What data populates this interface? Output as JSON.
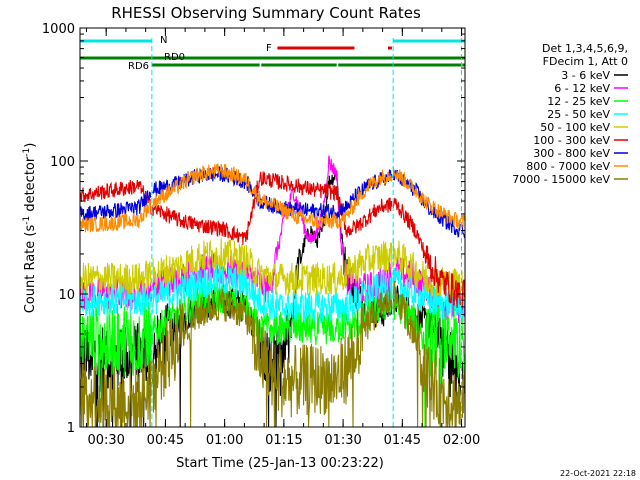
{
  "chart_data": {
    "type": "line",
    "title": "RHESSI Observing Summary Count Rates",
    "xlabel": "Start Time (25-Jan-13 00:23:22)",
    "ylabel_main": "Count Rate (s",
    "ylabel_sup1": "-1",
    "ylabel_mid": " detector",
    "ylabel_sup2": "-1",
    "ylabel_end": ")",
    "y_scale": "log",
    "ylim": [
      1,
      1000
    ],
    "xlim_minutes": [
      0,
      97.5
    ],
    "x_tick_labels": [
      "00:30",
      "00:45",
      "01:00",
      "01:15",
      "01:30",
      "01:45",
      "02:00"
    ],
    "x_tick_minutes": [
      6.63,
      21.63,
      36.63,
      51.63,
      66.63,
      81.63,
      96.63
    ],
    "y_tick_labels": [
      "1",
      "10",
      "100",
      "1000"
    ],
    "y_tick_values": [
      1,
      10,
      100,
      1000
    ],
    "grid": false,
    "legend_header": [
      "Det 1,3,4,5,6,9,",
      "FDecim 1, Att 0"
    ],
    "footer_date": "22-Oct-2021 22:18",
    "night_boundaries_minutes": [
      18.2,
      79.3,
      96.6
    ],
    "flags": [
      {
        "label": "N",
        "color": "#00e5e5",
        "segments": [
          [
            0,
            18.2
          ],
          [
            79.3,
            97.5
          ]
        ]
      },
      {
        "label": "F",
        "color": "#e00000",
        "segments": [
          [
            50.0,
            69.5
          ],
          [
            78.0,
            79.0
          ]
        ]
      },
      {
        "label": "RD0",
        "color": "#008000",
        "segments": [
          [
            0,
            97.5
          ]
        ]
      },
      {
        "label": "RD6",
        "color": "#008000",
        "segments": [
          [
            18.2,
            45.5
          ],
          [
            45.9,
            65.0
          ],
          [
            65.4,
            96.5
          ],
          [
            96.8,
            97.5
          ]
        ]
      }
    ],
    "series": [
      {
        "name": "3 - 6 keV",
        "color": "#000000",
        "x": [
          0,
          8,
          15,
          18,
          25,
          30,
          36,
          42,
          45.5,
          48,
          50,
          52,
          53.5,
          55,
          57,
          58.5,
          60,
          61.5,
          63,
          65,
          66,
          67.5,
          70,
          73,
          76,
          78,
          80,
          83,
          85,
          88,
          91,
          94,
          96.5
        ],
        "y": [
          3.5,
          3.3,
          3.3,
          3.2,
          6,
          8,
          9,
          8,
          5,
          2.8,
          3.0,
          3.5,
          6,
          15,
          25,
          30,
          25,
          30,
          70,
          80,
          30,
          15,
          10,
          8,
          7,
          8,
          9,
          8,
          7,
          6,
          5,
          3,
          2
        ]
      },
      {
        "name": "6 - 12 keV",
        "color": "#ff00ff",
        "x": [
          0,
          8,
          15,
          18,
          25,
          30,
          36,
          42,
          45.5,
          48,
          52,
          54,
          56,
          57,
          58.5,
          60,
          61.5,
          63,
          65,
          66,
          67.5,
          70,
          73,
          76,
          80,
          85,
          88,
          91,
          94,
          96.5
        ],
        "y": [
          10,
          10,
          10,
          11,
          13,
          15,
          15,
          14,
          12,
          11,
          40,
          60,
          40,
          30,
          25,
          30,
          40,
          100,
          80,
          25,
          13,
          11,
          11,
          12,
          15,
          13,
          11,
          9,
          8,
          8
        ]
      },
      {
        "name": "12 - 25 keV",
        "color": "#00ff00",
        "x": [
          0,
          8,
          15,
          18,
          25,
          30,
          36,
          42,
          45.5,
          50,
          55,
          60,
          65,
          67.5,
          70,
          73,
          76,
          80,
          85,
          88,
          91,
          94,
          96.5
        ],
        "y": [
          4.5,
          4.5,
          4.5,
          5,
          7,
          9,
          9.5,
          8,
          5.5,
          5.5,
          5.5,
          5.5,
          5.5,
          6,
          6,
          7,
          8,
          8.5,
          6,
          4.5,
          4.5,
          4.5,
          4
        ]
      },
      {
        "name": "25 - 50 keV",
        "color": "#00ffff",
        "x": [
          0,
          8,
          15,
          18,
          25,
          30,
          36,
          42,
          45.5,
          50,
          55,
          60,
          65,
          67.5,
          70,
          73,
          76,
          80,
          85,
          88,
          91,
          94,
          96.5
        ],
        "y": [
          9,
          9,
          9,
          9,
          10.5,
          12,
          13,
          12,
          9,
          8,
          8,
          8,
          8,
          8,
          9,
          10,
          11,
          12,
          10,
          9,
          8.5,
          8.5,
          8
        ]
      },
      {
        "name": "50 - 100 keV",
        "color": "#cccc00",
        "x": [
          0,
          8,
          15,
          18,
          25,
          30,
          36,
          42,
          45.5,
          50,
          55,
          60,
          65,
          67.5,
          70,
          73,
          76,
          80,
          85,
          88,
          91,
          94,
          96.5
        ],
        "y": [
          13,
          13,
          13,
          14,
          16,
          19,
          20,
          18,
          14,
          13,
          13,
          13,
          13,
          14,
          16,
          18,
          19,
          20,
          15,
          13,
          12.5,
          12,
          12
        ]
      },
      {
        "name": "100 - 300 keV",
        "color": "#e00000",
        "x": [
          0,
          8,
          15,
          18,
          25,
          30,
          36,
          42,
          45.5,
          50,
          55,
          60,
          65,
          67.5,
          70,
          73,
          76,
          80,
          85,
          88,
          91,
          94,
          96.5
        ],
        "y": [
          55,
          60,
          65,
          45,
          36,
          33,
          31,
          26,
          75,
          70,
          65,
          60,
          58,
          30,
          32,
          38,
          45,
          48,
          30,
          18,
          13,
          11,
          10
        ]
      },
      {
        "name": "300 - 800 keV",
        "color": "#0000dd",
        "x": [
          0,
          8,
          15,
          18,
          25,
          30,
          36,
          42,
          45.5,
          50,
          55,
          60,
          65,
          67.5,
          70,
          73,
          76,
          80,
          85,
          88,
          91,
          94,
          96.5
        ],
        "y": [
          40,
          42,
          45,
          60,
          68,
          78,
          80,
          70,
          50,
          45,
          43,
          42,
          42,
          45,
          55,
          65,
          72,
          78,
          60,
          45,
          38,
          33,
          30
        ]
      },
      {
        "name": "800 - 7000 keV",
        "color": "#ff8c00",
        "x": [
          0,
          8,
          15,
          18,
          25,
          30,
          36,
          42,
          45.5,
          50,
          55,
          60,
          65,
          67.5,
          70,
          73,
          76,
          80,
          85,
          88,
          91,
          94,
          96.5
        ],
        "y": [
          33,
          34,
          36,
          48,
          65,
          80,
          85,
          72,
          52,
          45,
          38,
          35,
          35,
          38,
          50,
          65,
          75,
          82,
          60,
          48,
          42,
          37,
          35
        ]
      },
      {
        "name": "7000 - 15000 keV",
        "color": "#8b7d00",
        "x": [
          0,
          8,
          15,
          18,
          25,
          30,
          36,
          42,
          45.5,
          50,
          55,
          60,
          65,
          67.5,
          70,
          73,
          76,
          80,
          85,
          88,
          91,
          94,
          96.5
        ],
        "y": [
          1.8,
          1.6,
          1.5,
          2.2,
          4.5,
          7,
          8.5,
          7,
          3.5,
          2.2,
          2.2,
          2.3,
          2.3,
          2.8,
          4,
          6,
          8,
          9.5,
          5,
          2.5,
          1.8,
          1.6,
          1.5
        ]
      }
    ]
  }
}
